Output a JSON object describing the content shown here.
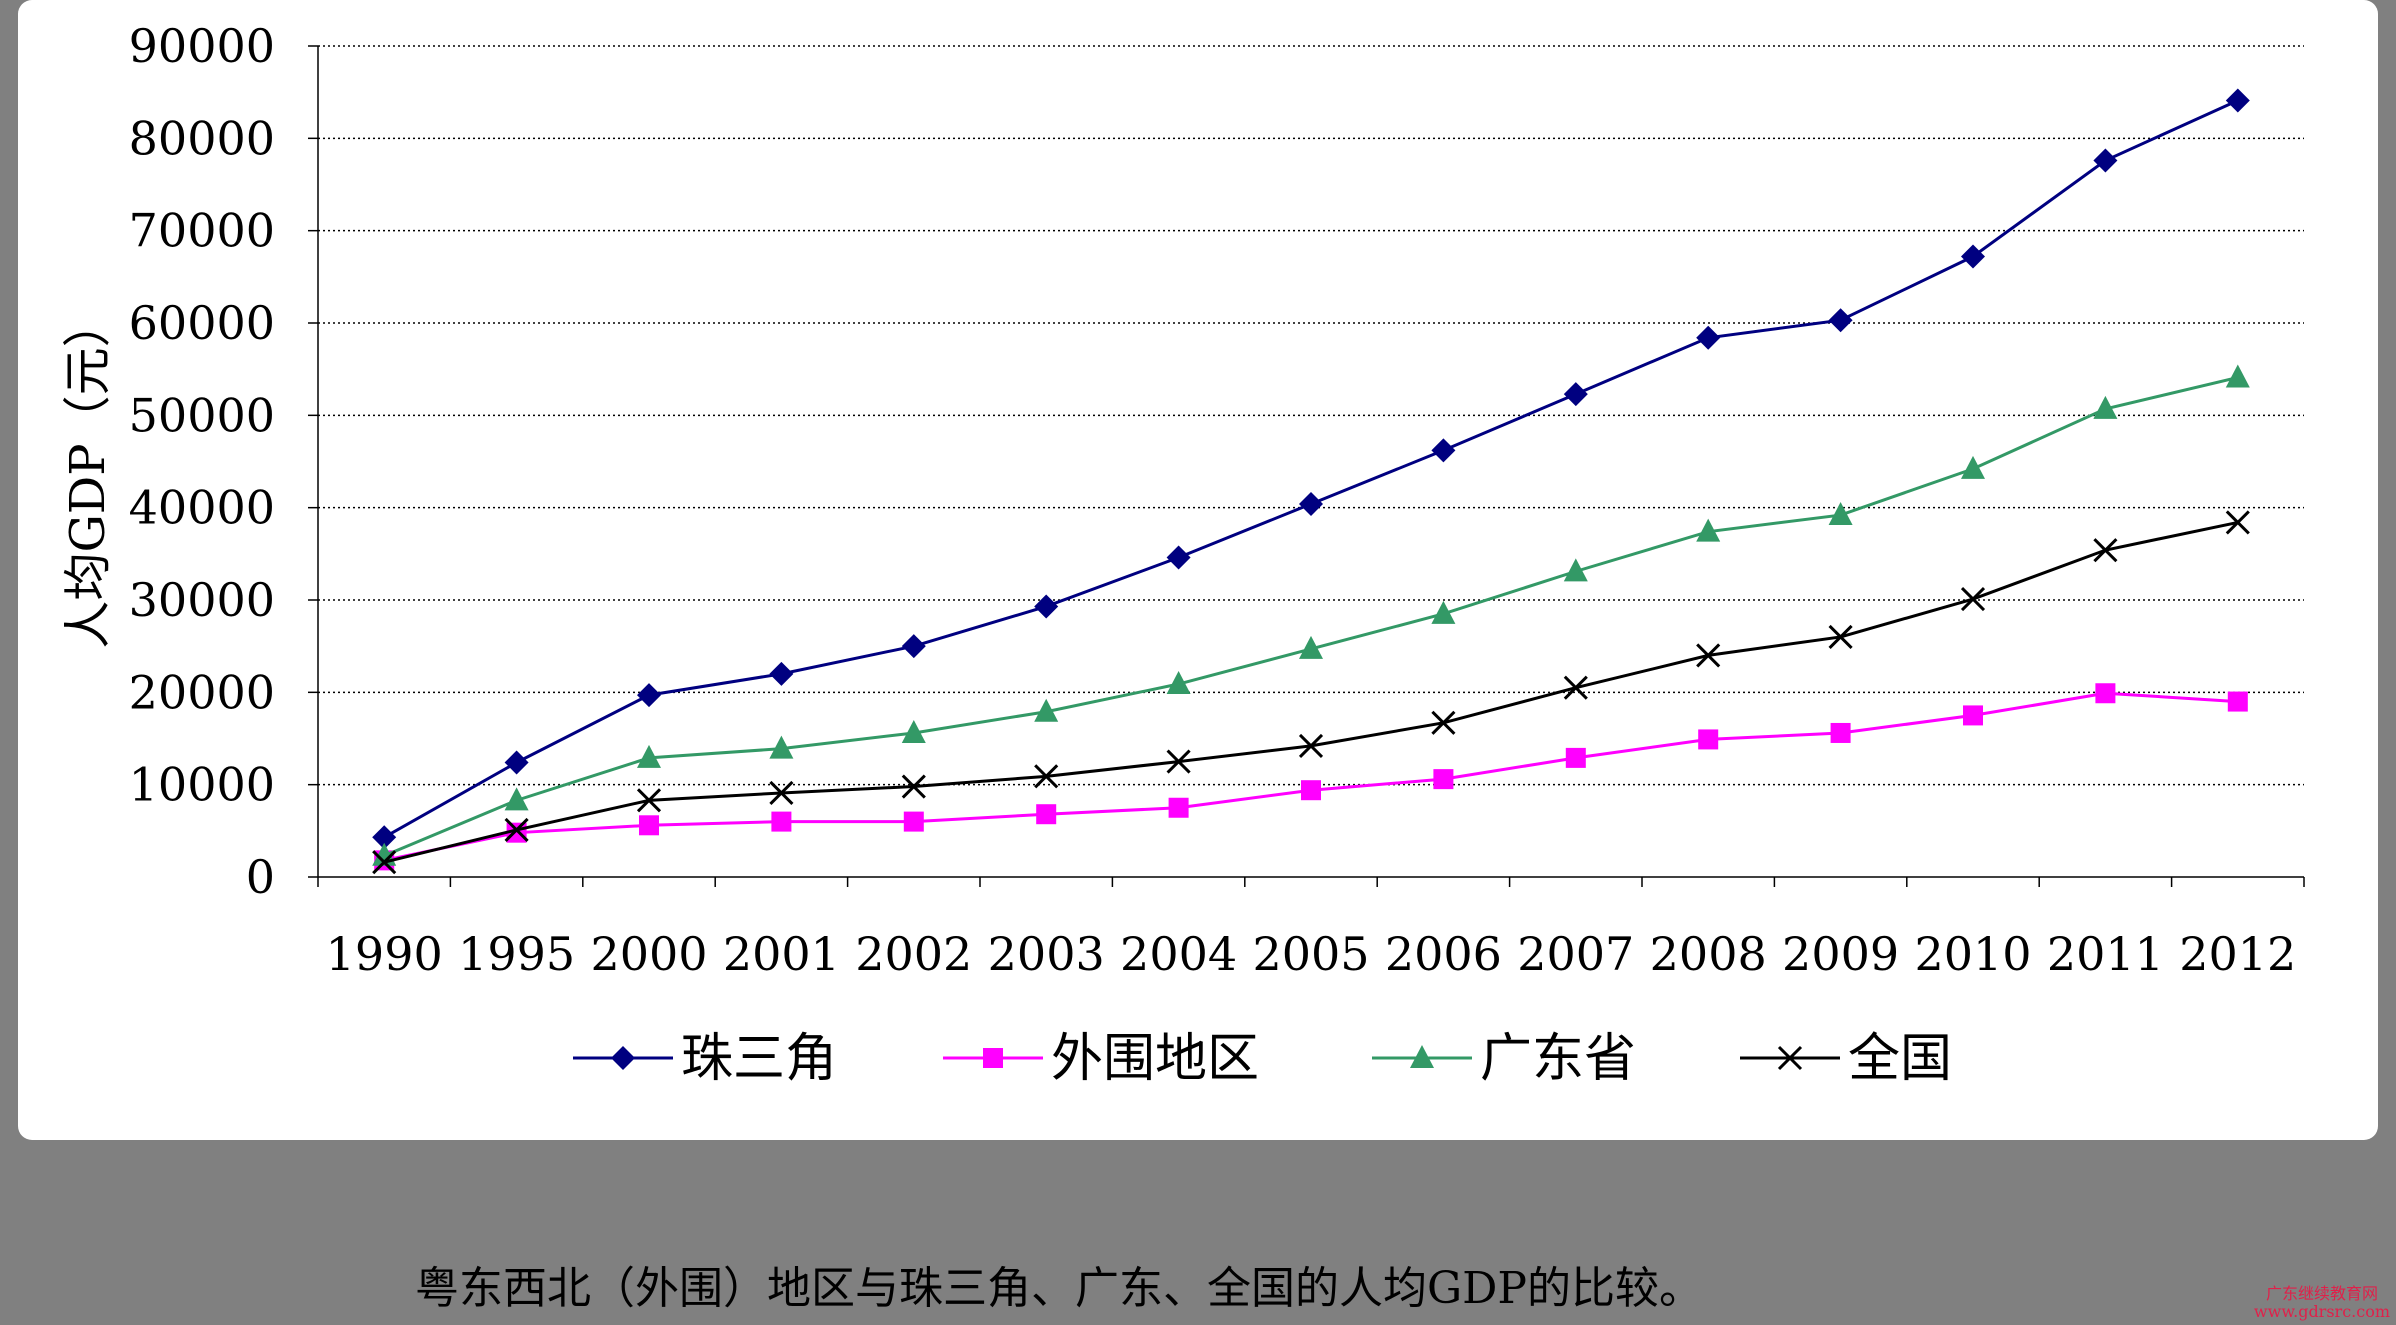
{
  "chart_data": {
    "type": "line",
    "title": "",
    "xlabel": "",
    "ylabel": "人均GDP（元）",
    "ylim": [
      0,
      90000
    ],
    "yticks": [
      0,
      10000,
      20000,
      30000,
      40000,
      50000,
      60000,
      70000,
      80000,
      90000
    ],
    "grid": "horizontal dotted",
    "legend_position": "bottom",
    "categories": [
      "1990",
      "1995",
      "2000",
      "2001",
      "2002",
      "2003",
      "2004",
      "2005",
      "2006",
      "2007",
      "2008",
      "2009",
      "2010",
      "2011",
      "2012"
    ],
    "series": [
      {
        "name": "珠三角",
        "color": "#000080",
        "marker": "diamond",
        "values": [
          4300,
          12400,
          19700,
          22000,
          25000,
          29300,
          34600,
          40400,
          46200,
          52300,
          58400,
          60300,
          67200,
          77600,
          84100
        ]
      },
      {
        "name": "外围地区",
        "color": "#ff00ff",
        "marker": "square",
        "values": [
          1800,
          4800,
          5600,
          6000,
          6000,
          6800,
          7500,
          9400,
          10600,
          12900,
          14900,
          15600,
          17500,
          19900,
          19000
        ]
      },
      {
        "name": "广东省",
        "color": "#339966",
        "marker": "triangle",
        "values": [
          2300,
          8300,
          12900,
          13900,
          15600,
          17900,
          20900,
          24700,
          28500,
          33100,
          37400,
          39200,
          44200,
          50700,
          54100
        ]
      },
      {
        "name": "全国",
        "color": "#000000",
        "marker": "x",
        "values": [
          1600,
          5100,
          8300,
          9100,
          9800,
          10900,
          12500,
          14200,
          16700,
          20500,
          24000,
          26000,
          30100,
          35400,
          38400
        ]
      }
    ]
  },
  "caption": "粤东西北（外围）地区与珠三角、广东、全国的人均GDP的比较。",
  "watermark": {
    "line1": "广东继续教育网",
    "line2": "www.gdrsrc.com"
  }
}
